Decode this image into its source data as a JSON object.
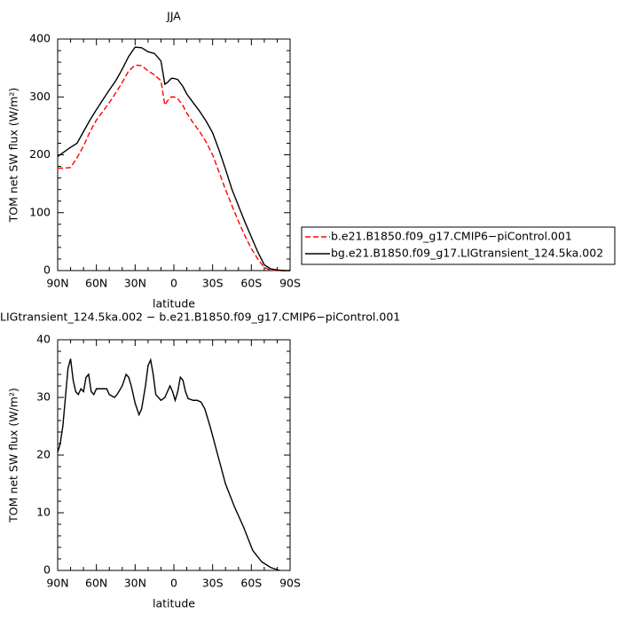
{
  "chart_data": [
    {
      "type": "line",
      "title": "JJA",
      "xlabel": "latitude",
      "ylabel": "TOM net SW flux (W/m²)",
      "x": [
        90,
        85,
        80,
        75,
        70,
        65,
        60,
        55,
        50,
        45,
        40,
        35,
        30,
        25,
        20,
        15,
        10,
        7,
        5,
        2,
        0,
        -3,
        -7,
        -10,
        -15,
        -20,
        -25,
        -30,
        -35,
        -40,
        -45,
        -50,
        -55,
        -60,
        -65,
        -70,
        -75,
        -80,
        -85,
        -90
      ],
      "series": [
        {
          "name": "b.e21.B1850.f09_g17.CMIP6−piControl.001",
          "color": "#ff0000",
          "dash": true,
          "values": [
            177,
            177,
            178,
            195,
            215,
            240,
            260,
            275,
            290,
            307,
            325,
            345,
            355,
            354,
            345,
            338,
            328,
            286,
            293,
            300,
            300,
            297,
            285,
            272,
            255,
            240,
            222,
            200,
            170,
            140,
            112,
            85,
            60,
            38,
            20,
            5,
            1,
            0,
            0,
            0
          ]
        },
        {
          "name": "bg.e21.B1850.f09_g17.LIGtransient_124.5ka.002",
          "color": "#000000",
          "dash": false,
          "values": [
            197,
            205,
            213,
            220,
            240,
            260,
            278,
            295,
            312,
            328,
            348,
            370,
            386,
            385,
            378,
            375,
            362,
            322,
            325,
            332,
            332,
            330,
            318,
            305,
            290,
            275,
            258,
            238,
            208,
            175,
            140,
            112,
            84,
            58,
            32,
            10,
            3,
            1,
            0,
            0
          ]
        }
      ],
      "xlim": [
        90,
        -90
      ],
      "xticks": [
        {
          "value": 90,
          "label": "90N"
        },
        {
          "value": 60,
          "label": "60N"
        },
        {
          "value": 30,
          "label": "30N"
        },
        0,
        {
          "value": -30,
          "label": "30S"
        },
        {
          "value": -60,
          "label": "60S"
        },
        {
          "value": -90,
          "label": "90S"
        }
      ],
      "ylim": [
        0,
        400
      ],
      "yticks": [
        0,
        100,
        200,
        300,
        400
      ],
      "legend": "right"
    },
    {
      "type": "line",
      "title": "LIGtransient_124.5ka.002 − b.e21.B1850.f09_g17.CMIP6−piControl.001",
      "xlabel": "latitude",
      "ylabel": "TOM net SW flux (W/m²)",
      "x": [
        90,
        88,
        86,
        84,
        82,
        80,
        78,
        76,
        74,
        72,
        70,
        68,
        66,
        64,
        62,
        60,
        56,
        52,
        50,
        46,
        44,
        40,
        37,
        35,
        33,
        30,
        27,
        25,
        22,
        20,
        18,
        16,
        14,
        12,
        10,
        7,
        5,
        3,
        1,
        -1,
        -3,
        -5,
        -7,
        -9,
        -11,
        -15,
        -18,
        -21,
        -24,
        -28,
        -34,
        -40,
        -47,
        -54,
        -61,
        -68,
        -75,
        -82
      ],
      "series": [
        {
          "color": "#000000",
          "dash": false,
          "values": [
            20.5,
            22,
            25,
            30,
            35,
            36.7,
            33,
            31,
            30.5,
            31.5,
            31,
            33.5,
            34,
            31,
            30.5,
            31.5,
            31.5,
            31.5,
            30.5,
            30,
            30.5,
            32,
            34,
            33.5,
            32,
            29,
            27,
            28,
            32,
            35.5,
            36.5,
            34,
            30.5,
            30,
            29.5,
            30,
            31,
            32,
            31,
            29.5,
            31,
            33.5,
            33,
            31,
            29.8,
            29.5,
            29.5,
            29.2,
            28,
            25,
            20,
            15,
            11,
            7.5,
            3.5,
            1.5,
            0.5,
            0
          ]
        }
      ],
      "xlim": [
        90,
        -90
      ],
      "xticks": [
        {
          "value": 90,
          "label": "90N"
        },
        {
          "value": 60,
          "label": "60N"
        },
        {
          "value": 30,
          "label": "30N"
        },
        0,
        {
          "value": -30,
          "label": "30S"
        },
        {
          "value": -60,
          "label": "60S"
        },
        {
          "value": -90,
          "label": "90S"
        }
      ],
      "ylim": [
        0,
        40
      ],
      "yticks": [
        0,
        10,
        20,
        30,
        40
      ]
    }
  ]
}
